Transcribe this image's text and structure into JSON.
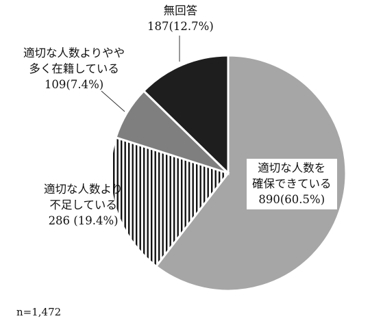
{
  "chart_data": {
    "type": "pie",
    "slices": [
      {
        "label_lines": [
          "適切な人数を",
          "確保できている",
          "890(60.5%)"
        ],
        "value": 890,
        "percent": 60.5,
        "fill": "#a6a6a6",
        "pattern": "none"
      },
      {
        "label_lines": [
          "適切な人数より",
          "不足している",
          "286 (19.4%)"
        ],
        "value": 286,
        "percent": 19.4,
        "fill": "#ffffff",
        "pattern": "vertical-stripes"
      },
      {
        "label_lines": [
          "適切な人数よりやや",
          "多く在籍している",
          "109(7.4%)"
        ],
        "value": 109,
        "percent": 7.4,
        "fill": "#7f7f7f",
        "pattern": "none"
      },
      {
        "label_lines": [
          "無回答",
          "187(12.7%)"
        ],
        "value": 187,
        "percent": 12.7,
        "fill": "#1e1e1e",
        "pattern": "none"
      }
    ],
    "note": "n=1,472"
  }
}
